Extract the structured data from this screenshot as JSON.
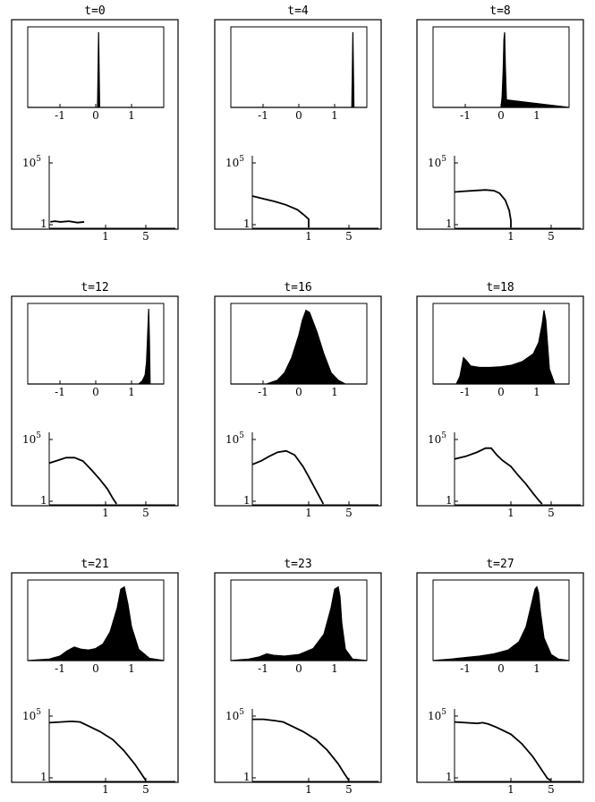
{
  "chart_data": [
    {
      "title": "t=0",
      "type": "area",
      "top": {
        "xticks": [
          "-1",
          "0",
          "1"
        ],
        "x": [
          -1.9,
          -1.2,
          -0.6,
          0.0,
          0.05,
          0.08,
          0.11,
          0.18,
          0.6,
          1.2,
          1.9
        ],
        "y": [
          0,
          0,
          0,
          0,
          0,
          1,
          0,
          0,
          0,
          0,
          0
        ]
      },
      "bottom": {
        "type": "line",
        "ytick_top_base": "10",
        "ytick_top_exp": "5",
        "ytick_bottom": "1",
        "xticks": [
          "1",
          "5"
        ],
        "x": [
          0.02,
          0.1,
          0.2,
          0.35,
          0.5,
          0.62
        ],
        "y": [
          0.08,
          0.09,
          0.08,
          0.09,
          0.07,
          0.08
        ]
      }
    },
    {
      "title": "t=4",
      "type": "area",
      "top": {
        "xticks": [
          "-1",
          "0",
          "1"
        ],
        "x": [
          -1.9,
          0,
          1.4,
          1.48,
          1.51,
          1.54,
          1.6,
          1.9
        ],
        "y": [
          0,
          0,
          0,
          0,
          1,
          0,
          0,
          0
        ]
      },
      "bottom": {
        "type": "line",
        "ytick_top_base": "10",
        "ytick_top_exp": "5",
        "ytick_bottom": "1",
        "xticks": [
          "1",
          "5"
        ],
        "x": [
          0,
          0.2,
          0.4,
          0.6,
          0.8,
          0.92,
          1.0,
          1.0
        ],
        "y": [
          0.46,
          0.42,
          0.38,
          0.33,
          0.26,
          0.18,
          0.12,
          0.0
        ]
      }
    },
    {
      "title": "t=8",
      "type": "area",
      "top": {
        "xticks": [
          "-1",
          "0",
          "1"
        ],
        "x": [
          -1.9,
          0,
          0.03,
          0.06,
          0.08,
          0.1,
          0.12,
          0.15,
          1.9
        ],
        "y": [
          0,
          0,
          0.15,
          0.5,
          0.9,
          1.0,
          0.55,
          0.1,
          0
        ]
      },
      "bottom": {
        "type": "line",
        "ytick_top_base": "10",
        "ytick_top_exp": "5",
        "ytick_bottom": "1",
        "xticks": [
          "1",
          "5"
        ],
        "x": [
          0,
          0.15,
          0.35,
          0.55,
          0.7,
          0.8,
          0.9,
          0.97,
          1.0,
          1.0
        ],
        "y": [
          0.52,
          0.53,
          0.54,
          0.55,
          0.54,
          0.5,
          0.4,
          0.25,
          0.1,
          0.0
        ]
      }
    },
    {
      "title": "t=12",
      "type": "area",
      "top": {
        "xticks": [
          "-1",
          "0",
          "1"
        ],
        "x": [
          -1.9,
          1.2,
          1.3,
          1.38,
          1.42,
          1.45,
          1.48,
          1.5,
          1.52,
          1.9
        ],
        "y": [
          0,
          0,
          0.04,
          0.12,
          0.3,
          0.65,
          1.0,
          0.6,
          0,
          0
        ]
      },
      "bottom": {
        "type": "line",
        "ytick_top_base": "10",
        "ytick_top_exp": "5",
        "ytick_bottom": "1",
        "xticks": [
          "1",
          "5"
        ],
        "x": [
          0,
          0.15,
          0.3,
          0.45,
          0.6,
          0.75,
          0.9,
          1.05,
          1.2,
          1.3
        ],
        "y": [
          0.6,
          0.64,
          0.68,
          0.68,
          0.63,
          0.5,
          0.36,
          0.22,
          0.08,
          0.0
        ]
      }
    },
    {
      "title": "t=16",
      "type": "area",
      "top": {
        "xticks": [
          "-1",
          "0",
          "1"
        ],
        "x": [
          -1.9,
          -0.9,
          -0.6,
          -0.4,
          -0.2,
          0.0,
          0.1,
          0.2,
          0.3,
          0.5,
          0.7,
          0.9,
          1.1,
          1.3,
          1.9
        ],
        "y": [
          0,
          0.0,
          0.05,
          0.15,
          0.35,
          0.65,
          0.85,
          0.98,
          0.95,
          0.7,
          0.4,
          0.15,
          0.05,
          0.0,
          0
        ]
      },
      "bottom": {
        "type": "line",
        "ytick_top_base": "10",
        "ytick_top_exp": "5",
        "ytick_bottom": "1",
        "xticks": [
          "1",
          "5"
        ],
        "x": [
          0,
          0.15,
          0.3,
          0.45,
          0.6,
          0.75,
          0.9,
          1.0,
          1.1,
          1.25,
          1.4
        ],
        "y": [
          0.58,
          0.63,
          0.7,
          0.76,
          0.78,
          0.72,
          0.55,
          0.4,
          0.3,
          0.15,
          0.0
        ]
      }
    },
    {
      "title": "t=18",
      "type": "area",
      "top": {
        "xticks": [
          "-1",
          "0",
          "1"
        ],
        "x": [
          -1.9,
          -1.25,
          -1.15,
          -1.05,
          -0.95,
          -0.85,
          -0.6,
          -0.3,
          0,
          0.3,
          0.6,
          0.9,
          1.05,
          1.15,
          1.2,
          1.25,
          1.35,
          1.5,
          1.9
        ],
        "y": [
          0,
          0,
          0.1,
          0.35,
          0.3,
          0.24,
          0.22,
          0.22,
          0.23,
          0.25,
          0.3,
          0.4,
          0.55,
          0.8,
          0.98,
          0.85,
          0.2,
          0,
          0
        ]
      },
      "bottom": {
        "type": "line",
        "ytick_top_base": "10",
        "ytick_top_exp": "5",
        "ytick_bottom": "1",
        "xticks": [
          "1",
          "5"
        ],
        "x": [
          0,
          0.2,
          0.4,
          0.55,
          0.65,
          0.75,
          0.85,
          1.0,
          1.2,
          1.4,
          1.6,
          1.75,
          1.85
        ],
        "y": [
          0.66,
          0.7,
          0.76,
          0.82,
          0.82,
          0.72,
          0.64,
          0.55,
          0.42,
          0.3,
          0.16,
          0.06,
          0.0
        ]
      }
    },
    {
      "title": "t=21",
      "type": "area",
      "top": {
        "xticks": [
          "-1",
          "0",
          "1"
        ],
        "x": [
          -1.9,
          -1.3,
          -1.0,
          -0.8,
          -0.6,
          -0.4,
          -0.2,
          0,
          0.2,
          0.4,
          0.6,
          0.7,
          0.8,
          0.9,
          1.0,
          1.2,
          1.5,
          1.9
        ],
        "y": [
          0,
          0.02,
          0.06,
          0.13,
          0.18,
          0.15,
          0.14,
          0.16,
          0.22,
          0.38,
          0.7,
          0.95,
          0.98,
          0.75,
          0.45,
          0.15,
          0.03,
          0
        ]
      },
      "bottom": {
        "type": "line",
        "ytick_top_base": "10",
        "ytick_top_exp": "5",
        "ytick_bottom": "1",
        "xticks": [
          "1",
          "5"
        ],
        "x": [
          0,
          0.2,
          0.4,
          0.55,
          0.7,
          0.9,
          1.2,
          1.5,
          1.8,
          2.0,
          2.1
        ],
        "y": [
          0.85,
          0.86,
          0.87,
          0.86,
          0.8,
          0.72,
          0.6,
          0.44,
          0.24,
          0.08,
          0.0
        ]
      }
    },
    {
      "title": "t=23",
      "type": "area",
      "top": {
        "xticks": [
          "-1",
          "0",
          "1"
        ],
        "x": [
          -1.9,
          -1.4,
          -1.1,
          -0.9,
          -0.7,
          -0.4,
          0,
          0.4,
          0.7,
          0.9,
          1.0,
          1.1,
          1.15,
          1.2,
          1.3,
          1.5,
          1.9
        ],
        "y": [
          0,
          0.02,
          0.05,
          0.09,
          0.07,
          0.06,
          0.08,
          0.16,
          0.35,
          0.7,
          0.95,
          0.98,
          0.85,
          0.5,
          0.15,
          0.02,
          0
        ]
      },
      "bottom": {
        "type": "line",
        "ytick_top_base": "10",
        "ytick_top_exp": "5",
        "ytick_bottom": "1",
        "xticks": [
          "1",
          "5"
        ],
        "x": [
          0,
          0.2,
          0.4,
          0.55,
          0.7,
          0.9,
          1.2,
          1.5,
          1.8,
          2.0,
          2.1
        ],
        "y": [
          0.9,
          0.9,
          0.88,
          0.86,
          0.8,
          0.72,
          0.6,
          0.45,
          0.25,
          0.08,
          0.0
        ]
      }
    },
    {
      "title": "t=27",
      "type": "area",
      "top": {
        "xticks": [
          "-1",
          "0",
          "1"
        ],
        "x": [
          -1.9,
          -1.4,
          -1.0,
          -0.6,
          -0.2,
          0.2,
          0.5,
          0.7,
          0.85,
          0.95,
          1.0,
          1.05,
          1.1,
          1.2,
          1.4,
          1.6,
          1.9
        ],
        "y": [
          0,
          0.02,
          0.04,
          0.06,
          0.09,
          0.14,
          0.25,
          0.45,
          0.75,
          0.95,
          0.98,
          0.9,
          0.65,
          0.3,
          0.08,
          0.02,
          0
        ]
      },
      "bottom": {
        "type": "line",
        "ytick_top_base": "10",
        "ytick_top_exp": "5",
        "ytick_bottom": "1",
        "xticks": [
          "1",
          "5"
        ],
        "x": [
          0,
          0.2,
          0.4,
          0.5,
          0.6,
          0.75,
          1.0,
          1.3,
          1.6,
          1.85,
          2.0,
          2.1
        ],
        "y": [
          0.86,
          0.85,
          0.84,
          0.85,
          0.83,
          0.78,
          0.68,
          0.54,
          0.35,
          0.15,
          0.03,
          0.0
        ]
      }
    }
  ]
}
